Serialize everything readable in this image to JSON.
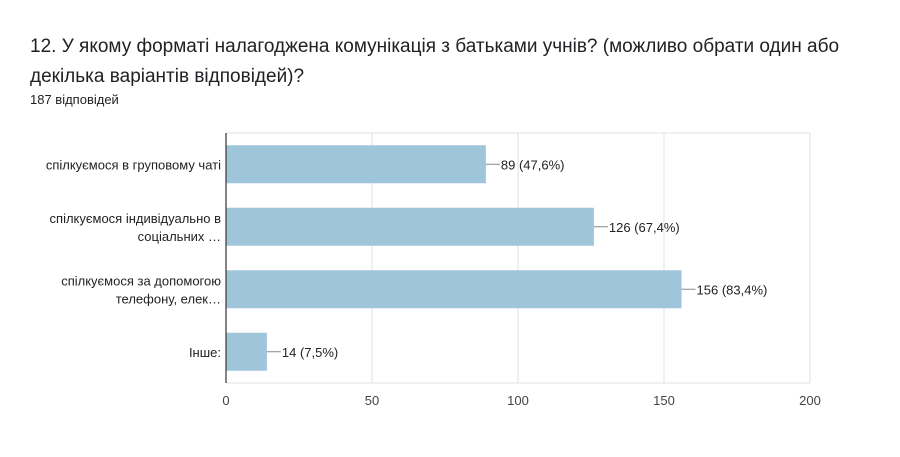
{
  "question": {
    "title": "12. У якому форматі налагоджена комунікація з батьками учнів? (можливо обрати один або декілька варіантів відповідей)?",
    "response_count": "187 відповідей"
  },
  "colors": {
    "bar": "#9fc5da",
    "axis": "#333333",
    "grid": "#e0e0e0",
    "leader": "#888888"
  },
  "chart_data": {
    "type": "bar",
    "orientation": "horizontal",
    "categories": [
      [
        "спілкуємося в груповому чаті"
      ],
      [
        "спілкуємося індивідуально в",
        "соціальних …"
      ],
      [
        "спілкуємося за допомогою",
        "телефону, елек…"
      ],
      [
        "Інше:"
      ]
    ],
    "values": [
      89,
      126,
      156,
      14
    ],
    "value_labels": [
      "89 (47,6%)",
      "126 (67,4%)",
      "156 (83,4%)",
      "14 (7,5%)"
    ],
    "xlim": [
      0,
      200
    ],
    "xticks": [
      0,
      50,
      100,
      150,
      200
    ],
    "grid": true
  }
}
